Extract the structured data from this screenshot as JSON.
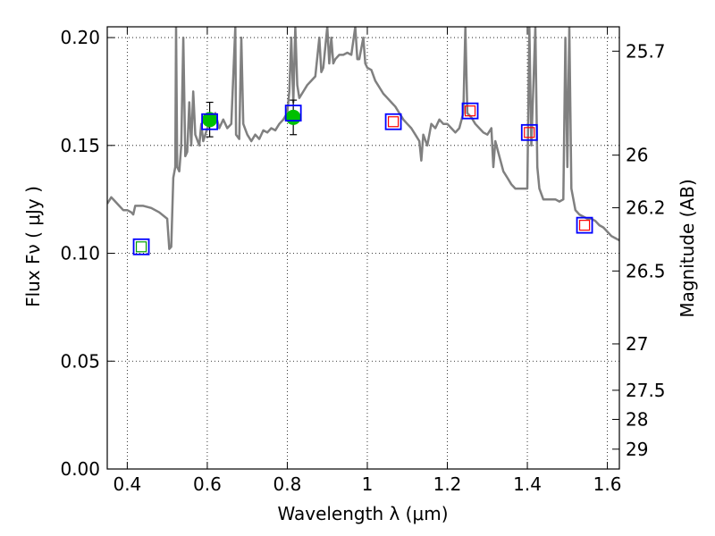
{
  "chart_data": {
    "type": "scatter",
    "xlabel": "Wavelength  λ (μm)",
    "ylabel": "Flux  Fν  ( μJy )",
    "ylabel_right": "Magnitude (AB)",
    "xlim": [
      0.35,
      1.63
    ],
    "ylim": [
      0.0,
      0.205
    ],
    "grid": true,
    "x_ticks": [
      0.4,
      0.6,
      0.8,
      1.0,
      1.2,
      1.4,
      1.6
    ],
    "x_tick_labels": [
      "0.4",
      "0.6",
      "0.8",
      "1",
      "1.2",
      "1.4",
      "1.6"
    ],
    "y_ticks": [
      0.0,
      0.05,
      0.1,
      0.15,
      0.2
    ],
    "y_tick_labels": [
      "0.00",
      "0.05",
      "0.10",
      "0.15",
      "0.20"
    ],
    "right_ticks": [
      {
        "label": "25.7",
        "flux": 0.1937
      },
      {
        "label": "26",
        "flux": 0.1455
      },
      {
        "label": "26.2",
        "flux": 0.1211
      },
      {
        "label": "26.5",
        "flux": 0.0918
      },
      {
        "label": "27",
        "flux": 0.058
      },
      {
        "label": "27.5",
        "flux": 0.0365
      },
      {
        "label": "28",
        "flux": 0.023
      },
      {
        "label": "29",
        "flux": 0.0092
      }
    ],
    "series": [
      {
        "kind": "line",
        "color": "#808080",
        "points": [
          [
            0.35,
            0.123
          ],
          [
            0.36,
            0.126
          ],
          [
            0.37,
            0.124
          ],
          [
            0.38,
            0.122
          ],
          [
            0.39,
            0.12
          ],
          [
            0.4,
            0.12
          ],
          [
            0.41,
            0.119
          ],
          [
            0.415,
            0.118
          ],
          [
            0.42,
            0.122
          ],
          [
            0.44,
            0.122
          ],
          [
            0.46,
            0.121
          ],
          [
            0.48,
            0.119
          ],
          [
            0.5,
            0.116
          ],
          [
            0.505,
            0.102
          ],
          [
            0.51,
            0.103
          ],
          [
            0.515,
            0.135
          ],
          [
            0.52,
            0.14
          ],
          [
            0.522,
            0.205
          ],
          [
            0.525,
            0.14
          ],
          [
            0.53,
            0.138
          ],
          [
            0.535,
            0.15
          ],
          [
            0.54,
            0.2
          ],
          [
            0.545,
            0.145
          ],
          [
            0.55,
            0.147
          ],
          [
            0.555,
            0.17
          ],
          [
            0.56,
            0.15
          ],
          [
            0.565,
            0.175
          ],
          [
            0.57,
            0.155
          ],
          [
            0.58,
            0.15
          ],
          [
            0.585,
            0.16
          ],
          [
            0.59,
            0.152
          ],
          [
            0.6,
            0.158
          ],
          [
            0.61,
            0.16
          ],
          [
            0.62,
            0.165
          ],
          [
            0.63,
            0.158
          ],
          [
            0.64,
            0.162
          ],
          [
            0.65,
            0.158
          ],
          [
            0.66,
            0.16
          ],
          [
            0.67,
            0.205
          ],
          [
            0.672,
            0.155
          ],
          [
            0.68,
            0.153
          ],
          [
            0.685,
            0.2
          ],
          [
            0.69,
            0.16
          ],
          [
            0.7,
            0.155
          ],
          [
            0.71,
            0.152
          ],
          [
            0.72,
            0.155
          ],
          [
            0.73,
            0.153
          ],
          [
            0.74,
            0.157
          ],
          [
            0.75,
            0.156
          ],
          [
            0.76,
            0.158
          ],
          [
            0.77,
            0.157
          ],
          [
            0.78,
            0.16
          ],
          [
            0.79,
            0.162
          ],
          [
            0.8,
            0.165
          ],
          [
            0.805,
            0.175
          ],
          [
            0.81,
            0.2
          ],
          [
            0.815,
            0.17
          ],
          [
            0.82,
            0.205
          ],
          [
            0.825,
            0.178
          ],
          [
            0.83,
            0.172
          ],
          [
            0.84,
            0.175
          ],
          [
            0.85,
            0.178
          ],
          [
            0.86,
            0.18
          ],
          [
            0.87,
            0.182
          ],
          [
            0.88,
            0.2
          ],
          [
            0.885,
            0.184
          ],
          [
            0.89,
            0.186
          ],
          [
            0.9,
            0.205
          ],
          [
            0.905,
            0.188
          ],
          [
            0.91,
            0.2
          ],
          [
            0.915,
            0.188
          ],
          [
            0.92,
            0.19
          ],
          [
            0.93,
            0.192
          ],
          [
            0.94,
            0.192
          ],
          [
            0.95,
            0.193
          ],
          [
            0.96,
            0.192
          ],
          [
            0.97,
            0.205
          ],
          [
            0.975,
            0.19
          ],
          [
            0.98,
            0.19
          ],
          [
            0.99,
            0.2
          ],
          [
            0.995,
            0.188
          ],
          [
            1.0,
            0.186
          ],
          [
            1.01,
            0.185
          ],
          [
            1.02,
            0.18
          ],
          [
            1.03,
            0.177
          ],
          [
            1.04,
            0.174
          ],
          [
            1.05,
            0.172
          ],
          [
            1.06,
            0.17
          ],
          [
            1.07,
            0.168
          ],
          [
            1.08,
            0.165
          ],
          [
            1.09,
            0.162
          ],
          [
            1.1,
            0.16
          ],
          [
            1.11,
            0.158
          ],
          [
            1.12,
            0.155
          ],
          [
            1.13,
            0.152
          ],
          [
            1.135,
            0.143
          ],
          [
            1.14,
            0.155
          ],
          [
            1.15,
            0.15
          ],
          [
            1.16,
            0.16
          ],
          [
            1.17,
            0.158
          ],
          [
            1.18,
            0.162
          ],
          [
            1.19,
            0.16
          ],
          [
            1.2,
            0.16
          ],
          [
            1.21,
            0.158
          ],
          [
            1.22,
            0.156
          ],
          [
            1.23,
            0.158
          ],
          [
            1.24,
            0.165
          ],
          [
            1.245,
            0.205
          ],
          [
            1.25,
            0.165
          ],
          [
            1.26,
            0.163
          ],
          [
            1.27,
            0.16
          ],
          [
            1.28,
            0.158
          ],
          [
            1.29,
            0.156
          ],
          [
            1.3,
            0.155
          ],
          [
            1.31,
            0.158
          ],
          [
            1.315,
            0.14
          ],
          [
            1.32,
            0.152
          ],
          [
            1.33,
            0.145
          ],
          [
            1.34,
            0.138
          ],
          [
            1.35,
            0.135
          ],
          [
            1.36,
            0.132
          ],
          [
            1.37,
            0.13
          ],
          [
            1.38,
            0.13
          ],
          [
            1.39,
            0.13
          ],
          [
            1.4,
            0.13
          ],
          [
            1.405,
            0.205
          ],
          [
            1.41,
            0.15
          ],
          [
            1.42,
            0.205
          ],
          [
            1.425,
            0.14
          ],
          [
            1.43,
            0.13
          ],
          [
            1.44,
            0.125
          ],
          [
            1.45,
            0.125
          ],
          [
            1.46,
            0.125
          ],
          [
            1.47,
            0.125
          ],
          [
            1.48,
            0.124
          ],
          [
            1.49,
            0.125
          ],
          [
            1.495,
            0.2
          ],
          [
            1.5,
            0.14
          ],
          [
            1.505,
            0.205
          ],
          [
            1.51,
            0.13
          ],
          [
            1.52,
            0.12
          ],
          [
            1.53,
            0.118
          ],
          [
            1.54,
            0.117
          ],
          [
            1.55,
            0.116
          ],
          [
            1.56,
            0.116
          ],
          [
            1.57,
            0.115
          ],
          [
            1.58,
            0.113
          ],
          [
            1.59,
            0.112
          ],
          [
            1.6,
            0.11
          ],
          [
            1.61,
            0.108
          ],
          [
            1.62,
            0.107
          ],
          [
            1.63,
            0.106
          ]
        ]
      },
      {
        "kind": "points",
        "marker": "circle",
        "color": "#00c000",
        "x": [
          0.606,
          0.815
        ],
        "y": [
          0.162,
          0.163
        ],
        "yerr": [
          0.008,
          0.008
        ]
      },
      {
        "kind": "points",
        "marker": "square-open",
        "color": "#0000ff",
        "x": [
          0.435,
          0.606,
          0.815,
          1.065,
          1.257,
          1.405,
          1.543
        ],
        "y": [
          0.103,
          0.161,
          0.165,
          0.161,
          0.166,
          0.156,
          0.113
        ]
      },
      {
        "kind": "points",
        "marker": "square-open-small",
        "color": "#ff0000",
        "x": [
          1.065,
          1.257,
          1.405,
          1.543
        ],
        "y": [
          0.161,
          0.166,
          0.156,
          0.113
        ]
      },
      {
        "kind": "points",
        "marker": "square-open-small",
        "color": "#00a000",
        "x": [
          0.435
        ],
        "y": [
          0.103
        ]
      }
    ]
  }
}
